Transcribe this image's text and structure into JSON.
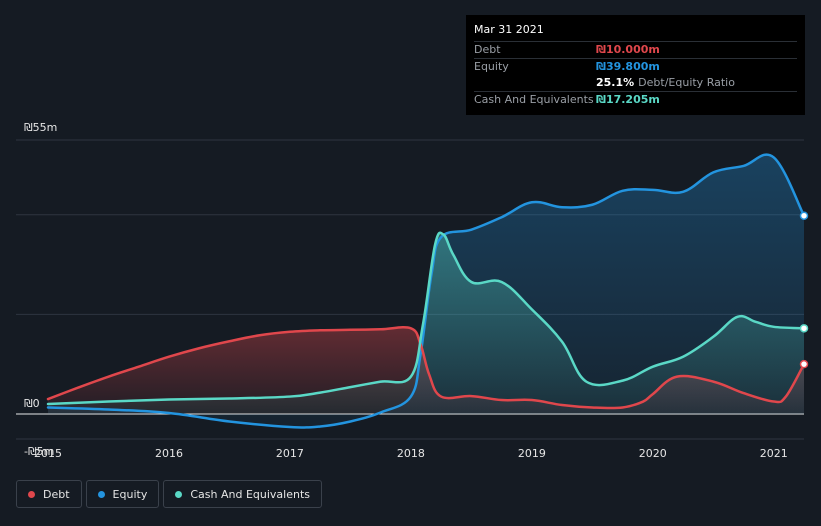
{
  "tooltip": {
    "date": "Mar 31 2021",
    "debt_label": "Debt",
    "debt_value": "₪10.000m",
    "equity_label": "Equity",
    "equity_value": "₪39.800m",
    "ratio_value": "25.1%",
    "ratio_label": "Debt/Equity Ratio",
    "cash_label": "Cash And Equivalents",
    "cash_value": "₪17.205m"
  },
  "colors": {
    "debt": "#e0474c",
    "equity": "#2394df",
    "cash": "#5ad8c6",
    "background": "#151b23"
  },
  "legend": [
    {
      "name": "Debt",
      "color": "#e0474c"
    },
    {
      "name": "Equity",
      "color": "#2394df"
    },
    {
      "name": "Cash And Equivalents",
      "color": "#5ad8c6"
    }
  ],
  "chart_data": {
    "type": "area",
    "title": "",
    "xlabel": "",
    "ylabel": "",
    "ylim": [
      -5,
      55
    ],
    "xlim": [
      2015.0,
      2021.25
    ],
    "y_ticks": [
      {
        "value": 55,
        "label": "₪55m"
      },
      {
        "value": 0,
        "label": "₪0"
      },
      {
        "value": -5,
        "label": "-₪5m"
      }
    ],
    "x_ticks": [
      {
        "value": 2015,
        "label": "2015"
      },
      {
        "value": 2016,
        "label": "2016"
      },
      {
        "value": 2017,
        "label": "2017"
      },
      {
        "value": 2018,
        "label": "2018"
      },
      {
        "value": 2019,
        "label": "2019"
      },
      {
        "value": 2020,
        "label": "2020"
      },
      {
        "value": 2021,
        "label": "2021"
      }
    ],
    "grid": true,
    "series": [
      {
        "name": "Debt",
        "color": "#e0474c",
        "points": [
          [
            2015.0,
            3.0
          ],
          [
            2015.25,
            5.3
          ],
          [
            2015.5,
            7.5
          ],
          [
            2015.75,
            9.5
          ],
          [
            2016.0,
            11.5
          ],
          [
            2016.25,
            13.2
          ],
          [
            2016.5,
            14.6
          ],
          [
            2016.75,
            15.8
          ],
          [
            2017.0,
            16.5
          ],
          [
            2017.25,
            16.8
          ],
          [
            2017.5,
            16.9
          ],
          [
            2017.75,
            17.0
          ],
          [
            2018.0,
            17.2
          ],
          [
            2018.08,
            14.0
          ],
          [
            2018.15,
            8.0
          ],
          [
            2018.25,
            3.5
          ],
          [
            2018.5,
            3.6
          ],
          [
            2018.75,
            2.8
          ],
          [
            2019.0,
            2.8
          ],
          [
            2019.25,
            1.8
          ],
          [
            2019.5,
            1.3
          ],
          [
            2019.75,
            1.3
          ],
          [
            2019.92,
            2.5
          ],
          [
            2020.0,
            4.0
          ],
          [
            2020.2,
            7.5
          ],
          [
            2020.5,
            6.5
          ],
          [
            2020.75,
            4.2
          ],
          [
            2021.0,
            2.5
          ],
          [
            2021.1,
            3.5
          ],
          [
            2021.25,
            10.0
          ]
        ]
      },
      {
        "name": "Equity",
        "color": "#2394df",
        "points": [
          [
            2015.0,
            1.3
          ],
          [
            2015.5,
            0.9
          ],
          [
            2016.0,
            0.2
          ],
          [
            2016.5,
            -1.5
          ],
          [
            2017.0,
            -2.6
          ],
          [
            2017.25,
            -2.5
          ],
          [
            2017.5,
            -1.5
          ],
          [
            2017.75,
            0.3
          ],
          [
            2018.0,
            3.5
          ],
          [
            2018.08,
            12.0
          ],
          [
            2018.17,
            28.0
          ],
          [
            2018.25,
            35.5
          ],
          [
            2018.5,
            37.0
          ],
          [
            2018.75,
            39.5
          ],
          [
            2019.0,
            42.5
          ],
          [
            2019.25,
            41.5
          ],
          [
            2019.5,
            42.0
          ],
          [
            2019.75,
            44.8
          ],
          [
            2020.0,
            45.0
          ],
          [
            2020.25,
            44.6
          ],
          [
            2020.5,
            48.5
          ],
          [
            2020.75,
            49.8
          ],
          [
            2021.0,
            51.5
          ],
          [
            2021.25,
            39.8
          ]
        ]
      },
      {
        "name": "Cash And Equivalents",
        "color": "#5ad8c6",
        "points": [
          [
            2015.0,
            2.0
          ],
          [
            2015.5,
            2.5
          ],
          [
            2016.0,
            2.9
          ],
          [
            2016.5,
            3.1
          ],
          [
            2017.0,
            3.5
          ],
          [
            2017.25,
            4.3
          ],
          [
            2017.5,
            5.4
          ],
          [
            2017.75,
            6.5
          ],
          [
            2018.0,
            7.5
          ],
          [
            2018.1,
            18.0
          ],
          [
            2018.2,
            34.0
          ],
          [
            2018.27,
            36.0
          ],
          [
            2018.35,
            32.0
          ],
          [
            2018.5,
            26.5
          ],
          [
            2018.75,
            26.5
          ],
          [
            2019.0,
            21.0
          ],
          [
            2019.25,
            14.5
          ],
          [
            2019.45,
            6.5
          ],
          [
            2019.75,
            6.7
          ],
          [
            2020.0,
            9.5
          ],
          [
            2020.25,
            11.5
          ],
          [
            2020.5,
            15.5
          ],
          [
            2020.7,
            19.5
          ],
          [
            2020.85,
            18.5
          ],
          [
            2021.0,
            17.5
          ],
          [
            2021.25,
            17.2
          ]
        ]
      }
    ]
  }
}
